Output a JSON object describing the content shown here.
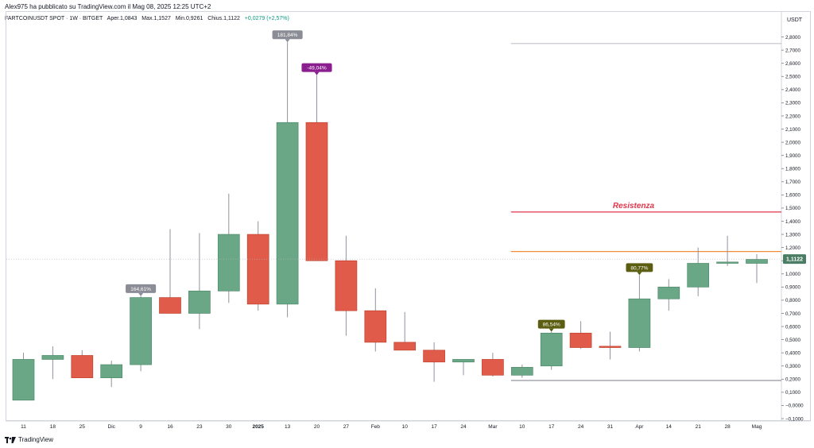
{
  "header": {
    "published_by": "Alex975 ha pubblicato su TradingView.com il Mag 08, 2025 12:25 UTC+2"
  },
  "ohlc_info": {
    "symbol": "FARTCOINUSDT SPOT",
    "interval": "1W",
    "exchange": "BITGET",
    "open_label": "Aper.",
    "open": "1,0843",
    "high_label": "Max.",
    "high": "1,1527",
    "low_label": "Min.",
    "low": "0,9261",
    "close_label": "Chius.",
    "close": "1,1122",
    "change": "+0,0279 (+2,57%)"
  },
  "footer": {
    "brand": "TradingView"
  },
  "colors": {
    "up": "#6aa787",
    "down": "#e05b49",
    "resistance": "#e0344a",
    "orange_line": "#f28c38",
    "gray_line": "#787b86",
    "label_gray": "#8a8d96",
    "label_purple": "#8b1e8f",
    "label_olive": "#5b5e11",
    "price_tag": "#4a7d63"
  },
  "chart_data": {
    "type": "candlestick",
    "y_axis_label": "USDT",
    "ylim": [
      -0.1,
      2.9
    ],
    "y_ticks": [
      "2,8000",
      "2,7000",
      "2,6000",
      "2,5000",
      "2,4000",
      "2,3000",
      "2,2000",
      "2,1000",
      "2,0000",
      "1,9000",
      "1,8000",
      "1,7000",
      "1,6000",
      "1,5000",
      "1,4000",
      "1,3000",
      "1,2000",
      "1,1000",
      "1,0000",
      "0,9000",
      "0,8000",
      "0,7000",
      "0,6000",
      "0,5000",
      "0,4000",
      "0,3000",
      "0,2000",
      "0,1000",
      "−0,0000",
      "−0,1000"
    ],
    "y_tick_values": [
      2.8,
      2.7,
      2.6,
      2.5,
      2.4,
      2.3,
      2.2,
      2.1,
      2.0,
      1.9,
      1.8,
      1.7,
      1.6,
      1.5,
      1.4,
      1.3,
      1.2,
      1.1,
      1.0,
      0.9,
      0.8,
      0.7,
      0.6,
      0.5,
      0.4,
      0.3,
      0.2,
      0.1,
      0.0,
      -0.1
    ],
    "x_tick_labels": [
      "11",
      "18",
      "25",
      "Dic",
      "9",
      "16",
      "23",
      "30",
      "2025",
      "13",
      "20",
      "27",
      "Feb",
      "10",
      "17",
      "24",
      "Mar",
      "10",
      "17",
      "24",
      "31",
      "Apr",
      "14",
      "21",
      "28",
      "Mag"
    ],
    "candles": [
      {
        "o": 0.04,
        "h": 0.4,
        "l": 0.04,
        "c": 0.35
      },
      {
        "o": 0.35,
        "h": 0.45,
        "l": 0.2,
        "c": 0.38
      },
      {
        "o": 0.38,
        "h": 0.42,
        "l": 0.21,
        "c": 0.21
      },
      {
        "o": 0.21,
        "h": 0.34,
        "l": 0.14,
        "c": 0.31
      },
      {
        "o": 0.31,
        "h": 0.83,
        "l": 0.26,
        "c": 0.82
      },
      {
        "o": 0.82,
        "h": 1.34,
        "l": 0.7,
        "c": 0.7
      },
      {
        "o": 0.7,
        "h": 1.31,
        "l": 0.58,
        "c": 0.87
      },
      {
        "o": 0.87,
        "h": 1.61,
        "l": 0.78,
        "c": 1.3
      },
      {
        "o": 1.3,
        "h": 1.4,
        "l": 0.72,
        "c": 0.77
      },
      {
        "o": 0.77,
        "h": 2.76,
        "l": 0.67,
        "c": 2.15
      },
      {
        "o": 2.15,
        "h": 2.51,
        "l": 1.1,
        "c": 1.1
      },
      {
        "o": 1.1,
        "h": 1.29,
        "l": 0.53,
        "c": 0.72
      },
      {
        "o": 0.72,
        "h": 0.89,
        "l": 0.41,
        "c": 0.48
      },
      {
        "o": 0.48,
        "h": 0.71,
        "l": 0.42,
        "c": 0.42
      },
      {
        "o": 0.42,
        "h": 0.48,
        "l": 0.18,
        "c": 0.33
      },
      {
        "o": 0.33,
        "h": 0.35,
        "l": 0.23,
        "c": 0.35
      },
      {
        "o": 0.35,
        "h": 0.4,
        "l": 0.22,
        "c": 0.23
      },
      {
        "o": 0.23,
        "h": 0.31,
        "l": 0.21,
        "c": 0.29
      },
      {
        "o": 0.3,
        "h": 0.56,
        "l": 0.27,
        "c": 0.55
      },
      {
        "o": 0.55,
        "h": 0.64,
        "l": 0.43,
        "c": 0.44
      },
      {
        "o": 0.45,
        "h": 0.56,
        "l": 0.35,
        "c": 0.44
      },
      {
        "o": 0.44,
        "h": 0.99,
        "l": 0.41,
        "c": 0.81
      },
      {
        "o": 0.81,
        "h": 0.96,
        "l": 0.72,
        "c": 0.9
      },
      {
        "o": 0.9,
        "h": 1.2,
        "l": 0.83,
        "c": 1.08
      },
      {
        "o": 1.08,
        "h": 1.29,
        "l": 1.06,
        "c": 1.09
      },
      {
        "o": 1.08,
        "h": 1.15,
        "l": 0.93,
        "c": 1.11
      }
    ],
    "annotations": [
      {
        "text": "181,84%",
        "candle": 9,
        "anchor": "high",
        "style": "label_gray"
      },
      {
        "text": "-49,04%",
        "candle": 10,
        "anchor": "high",
        "style": "label_purple"
      },
      {
        "text": "164,61%",
        "candle": 4,
        "anchor": "high",
        "style": "label_gray"
      },
      {
        "text": "86,54%",
        "candle": 18,
        "anchor": "high",
        "style": "label_olive"
      },
      {
        "text": "80,77%",
        "candle": 21,
        "anchor": "high",
        "style": "label_olive"
      }
    ],
    "horizontal_lines": [
      {
        "value": 2.75,
        "from_candle": 17,
        "style": "gray_thin"
      },
      {
        "value": 1.47,
        "from_candle": 17,
        "style": "resistance"
      },
      {
        "value": 1.17,
        "from_candle": 17,
        "style": "orange"
      },
      {
        "value": 0.19,
        "from_candle": 17,
        "style": "gray"
      }
    ],
    "resistance_label": "Resistenza",
    "last_price": "1,1122",
    "last_value": 1.1122
  }
}
